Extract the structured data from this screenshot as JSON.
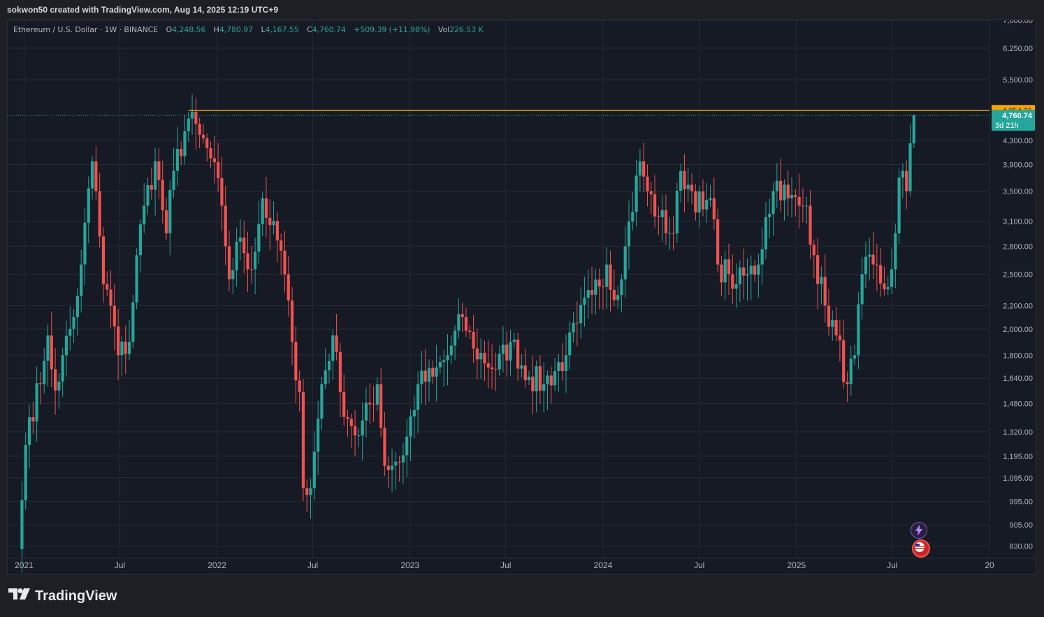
{
  "header": {
    "attribution": "sokwon50 created with TradingView.com, Aug 14, 2025 12:19 UTC+9"
  },
  "legend": {
    "symbol": "Ethereum / U.S. Dollar · 1W · BINANCE",
    "o_label": "O",
    "o_value": "4,248.56",
    "h_label": "H",
    "h_value": "4,780.97",
    "l_label": "L",
    "l_value": "4,167.55",
    "c_label": "C",
    "c_value": "4,760.74",
    "change": "+509.39 (+11.98%)",
    "vol_label": "Vol",
    "vol_value": "226.53 K"
  },
  "price_tags": {
    "resistance": "4,854.31",
    "last_price": "4,760.74",
    "countdown": "3d 21h"
  },
  "footer": {
    "brand": "TradingView"
  },
  "icons": [
    "lightning-badge-icon",
    "us-flag-badge-icon",
    "tradingview-logo-icon"
  ],
  "colors": {
    "up": "#26a69a",
    "down": "#ef5350",
    "resistance": "#f7a600",
    "background": "#161a25",
    "grid": "#262a35",
    "axis_text": "#b2b5be"
  },
  "chart_data": {
    "type": "candlestick",
    "title": "Ethereum / U.S. Dollar · 1W · BINANCE",
    "scale": "log",
    "ylim": [
      790,
      7000
    ],
    "y_ticks": [
      {
        "value": 830,
        "label": "830.00"
      },
      {
        "value": 905,
        "label": "905.00"
      },
      {
        "value": 995,
        "label": "995.00"
      },
      {
        "value": 1095,
        "label": "1,095.00"
      },
      {
        "value": 1195,
        "label": "1,195.00"
      },
      {
        "value": 1320,
        "label": "1,320.00"
      },
      {
        "value": 1480,
        "label": "1,480.00"
      },
      {
        "value": 1640,
        "label": "1,640.00"
      },
      {
        "value": 1800,
        "label": "1,800.00"
      },
      {
        "value": 2000,
        "label": "2,000.00"
      },
      {
        "value": 2200,
        "label": "2,200.00"
      },
      {
        "value": 2500,
        "label": "2,500.00"
      },
      {
        "value": 2800,
        "label": "2,800.00"
      },
      {
        "value": 3100,
        "label": "3,100.00"
      },
      {
        "value": 3500,
        "label": "3,500.00"
      },
      {
        "value": 3900,
        "label": "3,900.00"
      },
      {
        "value": 4300,
        "label": "4,300.00"
      },
      {
        "value": 5500,
        "label": "5,500.00"
      },
      {
        "value": 6250,
        "label": "6,250.00"
      },
      {
        "value": 7000,
        "label": "7,000.00"
      }
    ],
    "x_ticks": [
      "2021",
      "Jul",
      "2022",
      "Jul",
      "2023",
      "Jul",
      "2024",
      "Jul",
      "2025",
      "Jul",
      "20"
    ],
    "x_tick_dates": [
      "2021-01-01",
      "2021-07-01",
      "2022-01-01",
      "2022-07-01",
      "2023-01-01",
      "2023-07-01",
      "2024-01-01",
      "2024-07-01",
      "2025-01-01",
      "2025-07-01",
      "2026-01-01"
    ],
    "x_range": [
      "2020-12-01",
      "2026-01-01"
    ],
    "resistance_level": 4854.31,
    "last_close": 4760.74,
    "grid": true,
    "weekly_close_anchors": [
      [
        "2020-12-28",
        1000
      ],
      [
        "2021-01-04",
        1250
      ],
      [
        "2021-01-11",
        1400
      ],
      [
        "2021-02-01",
        1600
      ],
      [
        "2021-02-08",
        1760
      ],
      [
        "2021-02-15",
        1950
      ],
      [
        "2021-03-01",
        1560
      ],
      [
        "2021-03-15",
        1800
      ],
      [
        "2021-04-05",
        2100
      ],
      [
        "2021-04-19",
        2600
      ],
      [
        "2021-05-10",
        3950
      ],
      [
        "2021-05-17",
        3500
      ],
      [
        "2021-05-31",
        2400
      ],
      [
        "2021-06-14",
        2200
      ],
      [
        "2021-06-28",
        1800
      ],
      [
        "2021-07-19",
        1900
      ],
      [
        "2021-08-02",
        2700
      ],
      [
        "2021-08-16",
        3300
      ],
      [
        "2021-09-06",
        3950
      ],
      [
        "2021-09-27",
        2950
      ],
      [
        "2021-10-11",
        3800
      ],
      [
        "2021-11-08",
        4700
      ],
      [
        "2021-11-29",
        4400
      ],
      [
        "2021-12-20",
        4000
      ],
      [
        "2022-01-10",
        3300
      ],
      [
        "2022-01-24",
        2450
      ],
      [
        "2022-02-14",
        2900
      ],
      [
        "2022-03-07",
        2550
      ],
      [
        "2022-03-28",
        3400
      ],
      [
        "2022-04-11",
        3050
      ],
      [
        "2022-05-02",
        2750
      ],
      [
        "2022-05-23",
        1900
      ],
      [
        "2022-06-06",
        1550
      ],
      [
        "2022-06-13",
        1050
      ],
      [
        "2022-06-27",
        1050
      ],
      [
        "2022-07-18",
        1600
      ],
      [
        "2022-08-08",
        1950
      ],
      [
        "2022-08-22",
        1550
      ],
      [
        "2022-09-12",
        1350
      ],
      [
        "2022-09-26",
        1300
      ],
      [
        "2022-10-31",
        1600
      ],
      [
        "2022-11-14",
        1150
      ],
      [
        "2022-12-19",
        1200
      ],
      [
        "2023-01-16",
        1600
      ],
      [
        "2023-02-13",
        1650
      ],
      [
        "2023-03-13",
        1800
      ],
      [
        "2023-04-10",
        2100
      ],
      [
        "2023-05-01",
        1850
      ],
      [
        "2023-06-12",
        1700
      ],
      [
        "2023-07-10",
        1900
      ],
      [
        "2023-08-14",
        1650
      ],
      [
        "2023-09-11",
        1600
      ],
      [
        "2023-10-23",
        1800
      ],
      [
        "2023-11-13",
        2050
      ],
      [
        "2023-12-11",
        2300
      ],
      [
        "2024-01-08",
        2600
      ],
      [
        "2024-01-22",
        2250
      ],
      [
        "2024-02-12",
        2800
      ],
      [
        "2024-03-11",
        3950
      ],
      [
        "2024-03-25",
        3500
      ],
      [
        "2024-04-15",
        3150
      ],
      [
        "2024-05-13",
        2950
      ],
      [
        "2024-05-27",
        3800
      ],
      [
        "2024-06-17",
        3500
      ],
      [
        "2024-07-08",
        3250
      ],
      [
        "2024-07-22",
        3400
      ],
      [
        "2024-08-05",
        2600
      ],
      [
        "2024-08-26",
        2500
      ],
      [
        "2024-09-09",
        2400
      ],
      [
        "2024-09-30",
        2500
      ],
      [
        "2024-10-21",
        2600
      ],
      [
        "2024-11-04",
        3150
      ],
      [
        "2024-11-25",
        3650
      ],
      [
        "2024-12-16",
        3400
      ],
      [
        "2025-01-06",
        3300
      ],
      [
        "2025-01-20",
        3300
      ],
      [
        "2025-02-03",
        2700
      ],
      [
        "2025-02-24",
        2200
      ],
      [
        "2025-03-17",
        1950
      ],
      [
        "2025-04-07",
        1600
      ],
      [
        "2025-04-21",
        1800
      ],
      [
        "2025-05-05",
        2500
      ],
      [
        "2025-05-26",
        2600
      ],
      [
        "2025-06-16",
        2350
      ],
      [
        "2025-06-30",
        2550
      ],
      [
        "2025-07-07",
        2950
      ],
      [
        "2025-07-14",
        3700
      ],
      [
        "2025-07-21",
        3800
      ],
      [
        "2025-07-28",
        3500
      ],
      [
        "2025-08-04",
        4250
      ],
      [
        "2025-08-11",
        4760.74
      ]
    ]
  }
}
